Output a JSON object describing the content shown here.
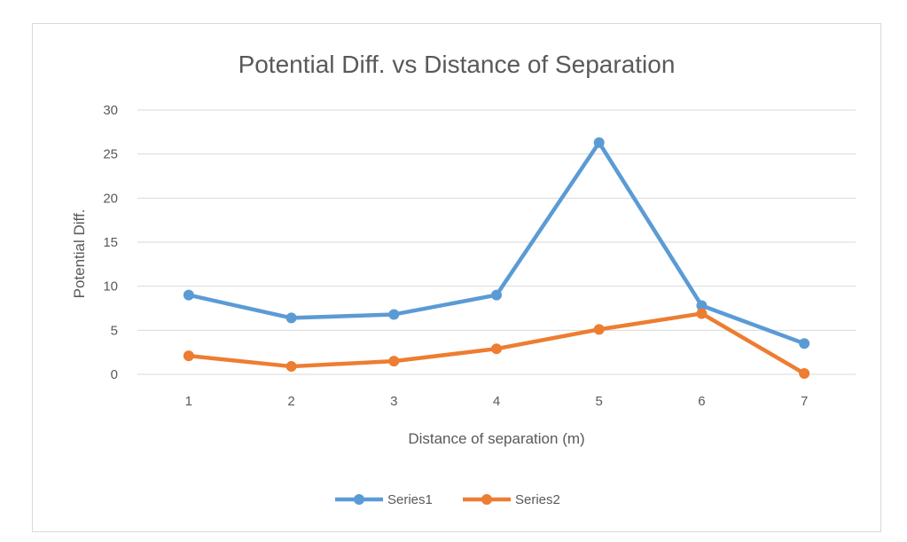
{
  "chart_data": {
    "type": "line",
    "title": "Potential Diff. vs Distance of Separation",
    "xlabel": "Distance of separation (m)",
    "ylabel": "Potential Diff.",
    "categories": [
      "1",
      "2",
      "3",
      "4",
      "5",
      "6",
      "7"
    ],
    "ylim": [
      0,
      30
    ],
    "yticks": [
      0,
      5,
      10,
      15,
      20,
      25,
      30
    ],
    "grid": true,
    "legend_position": "bottom",
    "series": [
      {
        "name": "Series1",
        "color": "#5b9bd5",
        "values": [
          9.0,
          6.4,
          6.8,
          9.0,
          26.3,
          7.8,
          3.5
        ]
      },
      {
        "name": "Series2",
        "color": "#ed7d31",
        "values": [
          2.1,
          0.9,
          1.5,
          2.9,
          5.1,
          6.9,
          0.1
        ]
      }
    ]
  }
}
